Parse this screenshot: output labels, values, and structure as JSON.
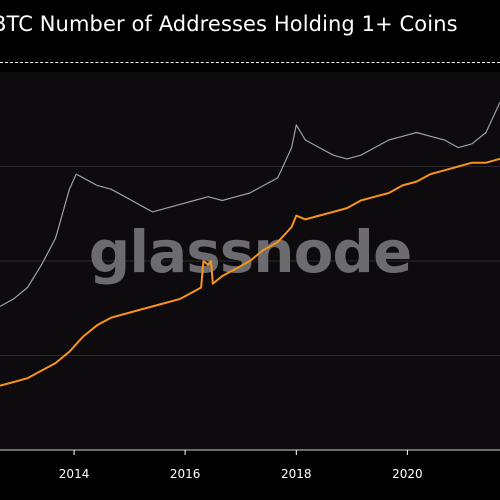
{
  "chart_data": {
    "type": "line",
    "title": "BTC Number of Addresses Holding 1+ Coins",
    "xlabel": "",
    "ylabel": "",
    "x_ticks": [
      "2014",
      "2016",
      "2018",
      "2020"
    ],
    "xlim": [
      "2012-09-01",
      "2021-09-01"
    ],
    "ylim": [
      0,
      100
    ],
    "grid": true,
    "watermark": "glassnode",
    "series": [
      {
        "color": "#f7931a",
        "x": [
          "2012-09-01",
          "2012-12-01",
          "2013-03-01",
          "2013-06-01",
          "2013-09-01",
          "2013-12-01",
          "2014-03-01",
          "2014-06-01",
          "2014-09-01",
          "2014-12-01",
          "2015-03-01",
          "2015-06-01",
          "2015-09-01",
          "2015-12-01",
          "2016-03-01",
          "2016-04-15",
          "2016-05-01",
          "2016-06-01",
          "2016-06-20",
          "2016-07-01",
          "2016-09-01",
          "2016-12-01",
          "2017-03-01",
          "2017-06-01",
          "2017-09-01",
          "2017-12-01",
          "2018-01-01",
          "2018-03-01",
          "2018-06-01",
          "2018-09-01",
          "2018-12-01",
          "2019-03-01",
          "2019-06-01",
          "2019-09-01",
          "2019-12-01",
          "2020-03-01",
          "2020-06-01",
          "2020-09-01",
          "2020-12-01",
          "2021-03-01",
          "2021-06-01",
          "2021-09-01"
        ],
        "values": [
          17,
          18,
          19,
          21,
          23,
          26,
          30,
          33,
          35,
          36,
          37,
          38,
          39,
          40,
          42,
          43,
          50,
          49,
          50,
          44,
          46,
          48,
          50,
          53,
          55,
          59,
          62,
          61,
          62,
          63,
          64,
          66,
          67,
          68,
          70,
          71,
          73,
          74,
          75,
          76,
          76,
          77
        ]
      },
      {
        "color": "#a0a0a0",
        "x": [
          "2012-09-01",
          "2012-12-01",
          "2013-03-01",
          "2013-06-01",
          "2013-09-01",
          "2013-12-01",
          "2014-01-15",
          "2014-03-01",
          "2014-06-01",
          "2014-09-01",
          "2014-12-01",
          "2015-03-01",
          "2015-06-01",
          "2015-09-01",
          "2015-12-01",
          "2016-03-01",
          "2016-06-01",
          "2016-09-01",
          "2016-12-01",
          "2017-03-01",
          "2017-06-01",
          "2017-09-01",
          "2017-12-01",
          "2018-01-01",
          "2018-03-01",
          "2018-06-01",
          "2018-09-01",
          "2018-12-01",
          "2019-03-01",
          "2019-06-01",
          "2019-09-01",
          "2019-12-01",
          "2020-03-01",
          "2020-06-01",
          "2020-09-01",
          "2020-12-01",
          "2021-03-01",
          "2021-06-01",
          "2021-09-01"
        ],
        "values": [
          38,
          40,
          43,
          49,
          56,
          69,
          73,
          72,
          70,
          69,
          67,
          65,
          63,
          64,
          65,
          66,
          67,
          66,
          67,
          68,
          70,
          72,
          80,
          86,
          82,
          80,
          78,
          77,
          78,
          80,
          82,
          83,
          84,
          83,
          82,
          80,
          81,
          84,
          92
        ]
      }
    ]
  }
}
